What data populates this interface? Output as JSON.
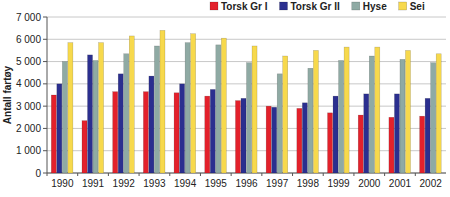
{
  "chart_data": {
    "type": "bar",
    "y_label": "Antall fartøy",
    "categories": [
      "1990",
      "1991",
      "1992",
      "1993",
      "1994",
      "1995",
      "1996",
      "1997",
      "1998",
      "1999",
      "2000",
      "2001",
      "2002"
    ],
    "series": [
      {
        "name": "Torsk Gr I",
        "color": "#e3212b",
        "values": [
          3500,
          2350,
          3650,
          3650,
          3600,
          3450,
          3250,
          3000,
          2900,
          2700,
          2600,
          2500,
          2550
        ]
      },
      {
        "name": "Torsk Gr II",
        "color": "#2b2f8f",
        "values": [
          4000,
          5300,
          4450,
          4350,
          4000,
          3750,
          3350,
          2950,
          3150,
          3450,
          3550,
          3550,
          3350
        ]
      },
      {
        "name": "Hyse",
        "color": "#8faaa4",
        "values": [
          5000,
          5050,
          5350,
          5700,
          5850,
          5750,
          4950,
          4450,
          4700,
          5050,
          5250,
          5100,
          4950
        ]
      },
      {
        "name": "Sei",
        "color": "#f7d94c",
        "values": [
          5850,
          5850,
          6150,
          6400,
          6250,
          6050,
          5700,
          5250,
          5500,
          5650,
          5650,
          5500,
          5350
        ]
      }
    ],
    "ylim": [
      0,
      7000
    ],
    "yticks": [
      0,
      {
        "value": 1000,
        "label": "1 000"
      },
      {
        "value": 2000,
        "label": "2 000"
      },
      {
        "value": 3000,
        "label": "3 000"
      },
      {
        "value": 4000,
        "label": "4 000"
      },
      {
        "value": 5000,
        "label": "5 000"
      },
      {
        "value": 6000,
        "label": "6 000"
      },
      {
        "value": 7000,
        "label": "7 000"
      }
    ],
    "grid": true,
    "legend": "top"
  }
}
